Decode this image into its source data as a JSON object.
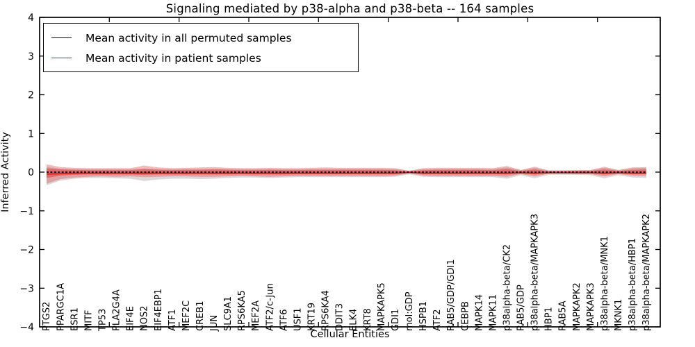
{
  "title": "Signaling mediated by p38-alpha and p38-beta -- 164 samples",
  "legend": {
    "items": [
      {
        "label": "Mean activity in all permuted samples",
        "color": "#000000"
      },
      {
        "label": "Mean activity in patient samples",
        "color": "#ff0000"
      }
    ]
  },
  "chart_data": {
    "type": "line",
    "title": "Signaling mediated by p38-alpha and p38-beta -- 164 samples",
    "xlabel": "Cellular Entities",
    "ylabel": "Inferred Activity",
    "ylim": [
      -4,
      4
    ],
    "yticks": [
      -4,
      -3,
      -2,
      -1,
      0,
      1,
      2,
      3,
      4
    ],
    "x_major_tick_units": [
      5,
      10,
      15,
      20,
      25,
      30,
      35,
      40
    ],
    "x_axis_units": 44.5,
    "grid": false,
    "legend_position": "upper left",
    "categories": [
      "PTGS2",
      "PPARGC1A",
      "ESR1",
      "MITF",
      "TP53",
      "PLA2G4A",
      "EIF4E",
      "NOS2",
      "EIF4EBP1",
      "ATF1",
      "MEF2C",
      "CREB1",
      "JUN",
      "SLC9A1",
      "RPS6KA5",
      "MEF2A",
      "ATF2/c-Jun",
      "ATF6",
      "USF1",
      "KRT19",
      "RPS6KA4",
      "DDIT3",
      "ELK4",
      "KRT8",
      "MAPKAPK5",
      "GDI1",
      "mol:GDP",
      "HSPB1",
      "ATF2",
      "RAB5/GDP/GDI1",
      "CEBPB",
      "MAPK14",
      "MAPK11",
      "p38alpha-beta/CK2",
      "RAB5/GDP",
      "p38alpha-beta/MAPKAPK3",
      "HBP1",
      "RAB5A",
      "MAPKAPK2",
      "MAPKAPK3",
      "p38alpha-beta/MNK1",
      "MKNK1",
      "p38alpha-beta/HBP1",
      "p38alpha-beta/MAPKAPK2"
    ],
    "series": [
      {
        "name": "Mean activity in all permuted samples",
        "color": "#111111",
        "style": "dashed",
        "width": 2,
        "values": [
          0,
          0,
          0,
          0,
          0,
          0,
          0,
          0,
          0,
          0,
          0,
          0,
          0,
          0,
          0,
          0,
          0,
          0,
          0,
          0,
          0,
          0,
          0,
          0,
          0,
          0,
          0,
          0,
          0,
          0,
          0,
          0,
          0,
          0,
          0,
          0,
          0,
          0,
          0,
          0,
          0,
          0,
          0,
          0
        ]
      },
      {
        "name": "Mean activity in patient samples",
        "color": "#e01b1b",
        "style": "solid",
        "width": 1.8,
        "values": [
          -0.05,
          -0.04,
          -0.03,
          -0.03,
          -0.03,
          -0.03,
          -0.03,
          -0.03,
          -0.03,
          -0.03,
          -0.03,
          -0.03,
          -0.03,
          -0.03,
          -0.03,
          -0.03,
          -0.03,
          -0.03,
          -0.03,
          -0.03,
          -0.03,
          -0.03,
          -0.03,
          -0.03,
          -0.03,
          -0.03,
          -0.01,
          -0.03,
          -0.03,
          -0.03,
          -0.03,
          -0.03,
          -0.03,
          -0.03,
          -0.02,
          -0.03,
          -0.02,
          -0.02,
          -0.02,
          -0.02,
          -0.03,
          -0.02,
          -0.03,
          -0.03
        ]
      }
    ],
    "bands": [
      {
        "name": "permuted-std-band",
        "color": "#aaaaaa",
        "opacity": 0.45,
        "upper": [
          0.14,
          0.09,
          0.08,
          0.08,
          0.08,
          0.08,
          0.08,
          0.09,
          0.08,
          0.08,
          0.08,
          0.08,
          0.08,
          0.08,
          0.08,
          0.08,
          0.08,
          0.08,
          0.08,
          0.08,
          0.08,
          0.08,
          0.08,
          0.08,
          0.08,
          0.08,
          0.04,
          0.08,
          0.08,
          0.08,
          0.08,
          0.08,
          0.08,
          0.12,
          0.06,
          0.11,
          0.05,
          0.05,
          0.05,
          0.06,
          0.11,
          0.06,
          0.1,
          0.11
        ],
        "lower": [
          -0.34,
          -0.22,
          -0.17,
          -0.15,
          -0.15,
          -0.16,
          -0.17,
          -0.23,
          -0.19,
          -0.17,
          -0.17,
          -0.18,
          -0.17,
          -0.15,
          -0.14,
          -0.14,
          -0.15,
          -0.14,
          -0.13,
          -0.13,
          -0.13,
          -0.13,
          -0.13,
          -0.13,
          -0.13,
          -0.12,
          -0.06,
          -0.12,
          -0.13,
          -0.13,
          -0.13,
          -0.13,
          -0.13,
          -0.17,
          -0.08,
          -0.16,
          -0.07,
          -0.07,
          -0.07,
          -0.08,
          -0.16,
          -0.08,
          -0.14,
          -0.15
        ]
      },
      {
        "name": "patient-std-band-outer",
        "color": "#e85050",
        "opacity": 0.4,
        "upper": [
          0.2,
          0.13,
          0.11,
          0.1,
          0.1,
          0.1,
          0.1,
          0.17,
          0.12,
          0.1,
          0.11,
          0.12,
          0.13,
          0.11,
          0.1,
          0.1,
          0.11,
          0.1,
          0.1,
          0.11,
          0.12,
          0.11,
          0.11,
          0.11,
          0.11,
          0.1,
          0.03,
          0.1,
          0.11,
          0.11,
          0.11,
          0.11,
          0.1,
          0.16,
          0.05,
          0.14,
          0.04,
          0.04,
          0.05,
          0.05,
          0.14,
          0.05,
          0.12,
          0.13
        ],
        "lower": [
          -0.3,
          -0.18,
          -0.14,
          -0.12,
          -0.11,
          -0.12,
          -0.11,
          -0.13,
          -0.12,
          -0.11,
          -0.11,
          -0.12,
          -0.12,
          -0.11,
          -0.1,
          -0.11,
          -0.12,
          -0.11,
          -0.1,
          -0.1,
          -0.1,
          -0.1,
          -0.1,
          -0.1,
          -0.1,
          -0.09,
          -0.03,
          -0.09,
          -0.1,
          -0.1,
          -0.1,
          -0.1,
          -0.1,
          -0.12,
          -0.05,
          -0.11,
          -0.04,
          -0.04,
          -0.05,
          -0.05,
          -0.11,
          -0.05,
          -0.09,
          -0.1
        ]
      },
      {
        "name": "patient-std-band-inner",
        "color": "#d93434",
        "opacity": 0.5,
        "upper": [
          0.1,
          0.07,
          0.06,
          0.05,
          0.05,
          0.05,
          0.05,
          0.08,
          0.06,
          0.05,
          0.06,
          0.06,
          0.07,
          0.06,
          0.05,
          0.05,
          0.06,
          0.05,
          0.05,
          0.06,
          0.06,
          0.06,
          0.06,
          0.06,
          0.06,
          0.05,
          0.02,
          0.05,
          0.06,
          0.06,
          0.06,
          0.06,
          0.05,
          0.08,
          0.03,
          0.07,
          0.02,
          0.02,
          0.03,
          0.03,
          0.07,
          0.03,
          0.06,
          0.07
        ],
        "lower": [
          -0.15,
          -0.09,
          -0.07,
          -0.06,
          -0.06,
          -0.06,
          -0.06,
          -0.07,
          -0.06,
          -0.06,
          -0.06,
          -0.06,
          -0.06,
          -0.06,
          -0.05,
          -0.06,
          -0.06,
          -0.06,
          -0.05,
          -0.05,
          -0.05,
          -0.05,
          -0.05,
          -0.05,
          -0.05,
          -0.05,
          -0.02,
          -0.05,
          -0.05,
          -0.05,
          -0.05,
          -0.05,
          -0.05,
          -0.06,
          -0.03,
          -0.06,
          -0.02,
          -0.02,
          -0.03,
          -0.03,
          -0.06,
          -0.03,
          -0.05,
          -0.05
        ]
      }
    ]
  }
}
